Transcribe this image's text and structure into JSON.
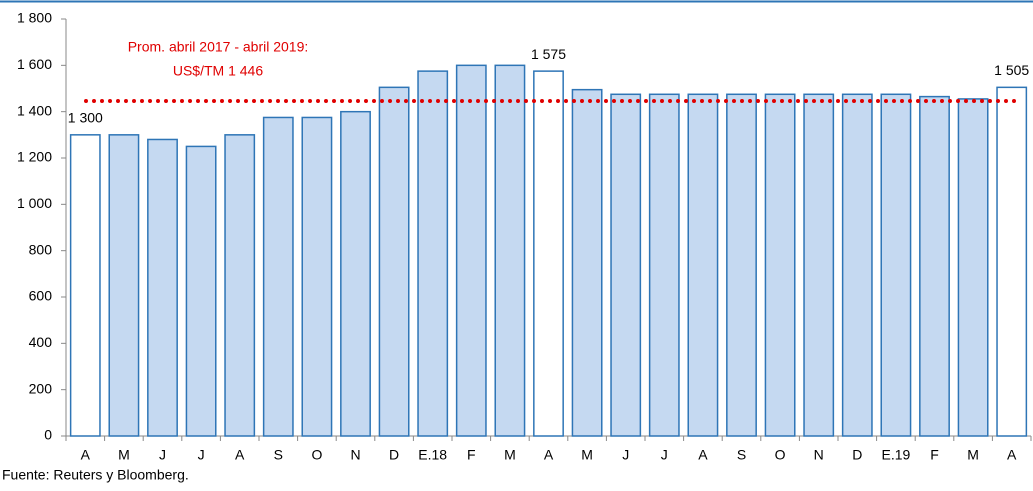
{
  "chart_data": {
    "type": "bar",
    "categories": [
      "A",
      "M",
      "J",
      "J",
      "A",
      "S",
      "O",
      "N",
      "D",
      "E.18",
      "F",
      "M",
      "A",
      "M",
      "J",
      "J",
      "A",
      "S",
      "O",
      "N",
      "D",
      "E.19",
      "F",
      "M",
      "A"
    ],
    "values": [
      1300,
      1300,
      1280,
      1250,
      1300,
      1375,
      1375,
      1400,
      1505,
      1575,
      1600,
      1600,
      1575,
      1495,
      1475,
      1475,
      1475,
      1475,
      1475,
      1475,
      1475,
      1475,
      1465,
      1455,
      1505
    ],
    "value_labels": [
      "1 300",
      null,
      null,
      null,
      null,
      null,
      null,
      null,
      null,
      null,
      null,
      null,
      "1 575",
      null,
      null,
      null,
      null,
      null,
      null,
      null,
      null,
      null,
      null,
      null,
      "1 505"
    ],
    "colors": [
      "#ffffff",
      "#c5d9f1",
      "#c5d9f1",
      "#c5d9f1",
      "#c5d9f1",
      "#c5d9f1",
      "#c5d9f1",
      "#c5d9f1",
      "#c5d9f1",
      "#c5d9f1",
      "#c5d9f1",
      "#c5d9f1",
      "#ffffff",
      "#c5d9f1",
      "#c5d9f1",
      "#c5d9f1",
      "#c5d9f1",
      "#c5d9f1",
      "#c5d9f1",
      "#c5d9f1",
      "#c5d9f1",
      "#c5d9f1",
      "#c5d9f1",
      "#c5d9f1",
      "#ffffff"
    ],
    "edge_color": "#2e75b6",
    "ylim": [
      0,
      1800
    ],
    "yticks": [
      0,
      200,
      400,
      600,
      800,
      {
        "value": 1000,
        "label": "1 000"
      },
      {
        "value": 1200,
        "label": "1 200"
      },
      {
        "value": 1400,
        "label": "1 400"
      },
      {
        "value": 1600,
        "label": "1 600"
      },
      {
        "value": 1800,
        "label": "1 800"
      }
    ],
    "reference_line": {
      "value": 1446,
      "color": "#e00000"
    },
    "annotation": [
      "Prom. abril 2017 - abril 2019:",
      "US$/TM 1 446"
    ],
    "source": "Fuente: Reuters y Bloomberg."
  }
}
